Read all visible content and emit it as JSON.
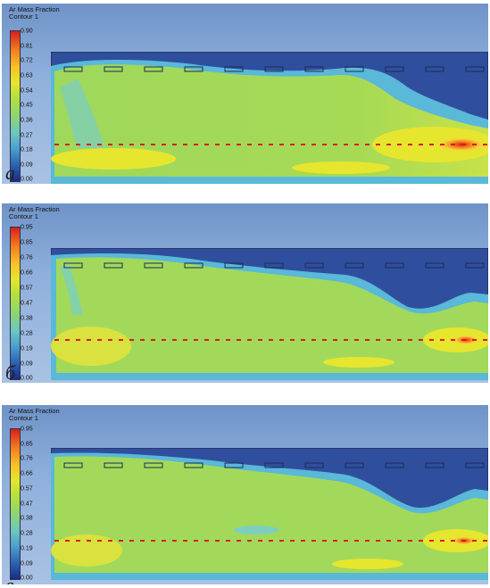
{
  "panels": [
    {
      "title": "Ar Mass Fraction",
      "subtitle": "Contour 1",
      "ticks": [
        "0.90",
        "0.81",
        "0.72",
        "0.63",
        "0.54",
        "0.45",
        "0.36",
        "0.27",
        "0.18",
        "0.09",
        "0.00"
      ],
      "label": "a"
    },
    {
      "title": "Ar Mass Fraction",
      "subtitle": "Contour 1",
      "ticks": [
        "0.95",
        "0.85",
        "0.76",
        "0.66",
        "0.57",
        "0.47",
        "0.38",
        "0.28",
        "0.19",
        "0.09",
        "0.00"
      ],
      "label": "б"
    },
    {
      "title": "Ar Mass Fraction",
      "subtitle": "Contour 1",
      "ticks": [
        "0.95",
        "0.85",
        "0.76",
        "0.66",
        "0.57",
        "0.47",
        "0.38",
        "0.28",
        "0.19",
        "0.09",
        "0.00"
      ],
      "label": "в"
    }
  ],
  "colors": {
    "background_blue": "#7c9fd0",
    "low_blue": "#2a4fa8",
    "mid_green": "#8fd66e",
    "high_yellow": "#e6e62e",
    "peak_red": "#d81f1c"
  }
}
